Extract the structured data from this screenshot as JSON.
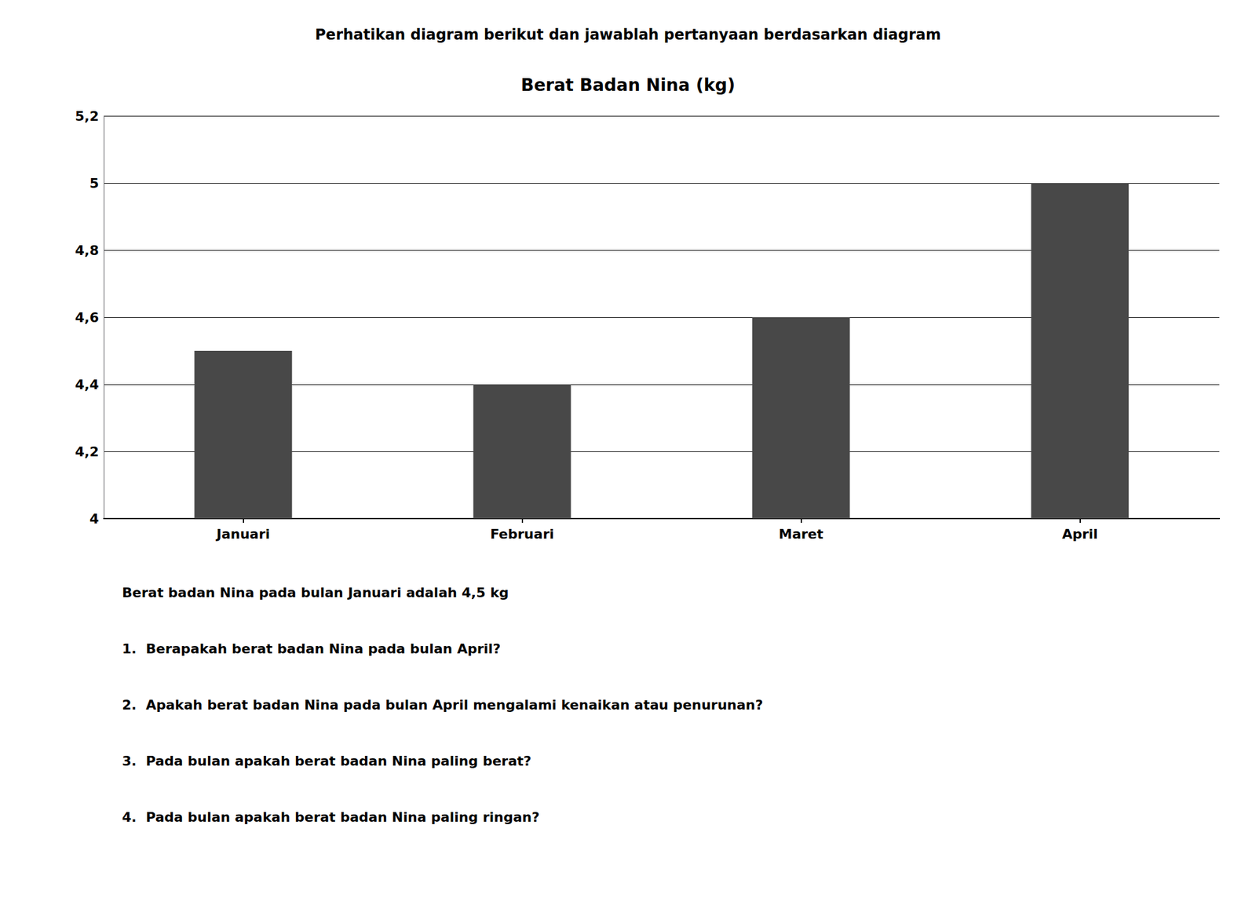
{
  "chart_data": {
    "type": "bar",
    "title": "Berat Badan Nina (kg)",
    "subtitle": "Perhatikan diagram berikut dan jawablah pertanyaan berdasarkan diagram",
    "categories": [
      "Januari",
      "Februari",
      "Maret",
      "April"
    ],
    "values": [
      4.5,
      4.4,
      4.6,
      5.0
    ],
    "color": "#484848",
    "ylim": [
      4.0,
      5.2
    ],
    "yticks": [
      4,
      {
        "value": 4.2,
        "label": "4,2"
      },
      {
        "value": 4.4,
        "label": "4,4"
      },
      {
        "value": 4.6,
        "label": "4,6"
      },
      {
        "value": 4.8,
        "label": "4,8"
      },
      5,
      {
        "value": 5.2,
        "label": "5,2"
      }
    ],
    "grid": true,
    "annotations": [
      "Berat badan Nina pada bulan Januari adalah 4,5 kg",
      "1.  Berapakah berat badan Nina pada bulan April?",
      "2.  Apakah berat badan Nina pada bulan April mengalami kenaikan atau penurunan?",
      "3.  Pada bulan apakah berat badan Nina paling berat?",
      "4.  Pada bulan apakah berat badan Nina paling ringan?"
    ]
  }
}
